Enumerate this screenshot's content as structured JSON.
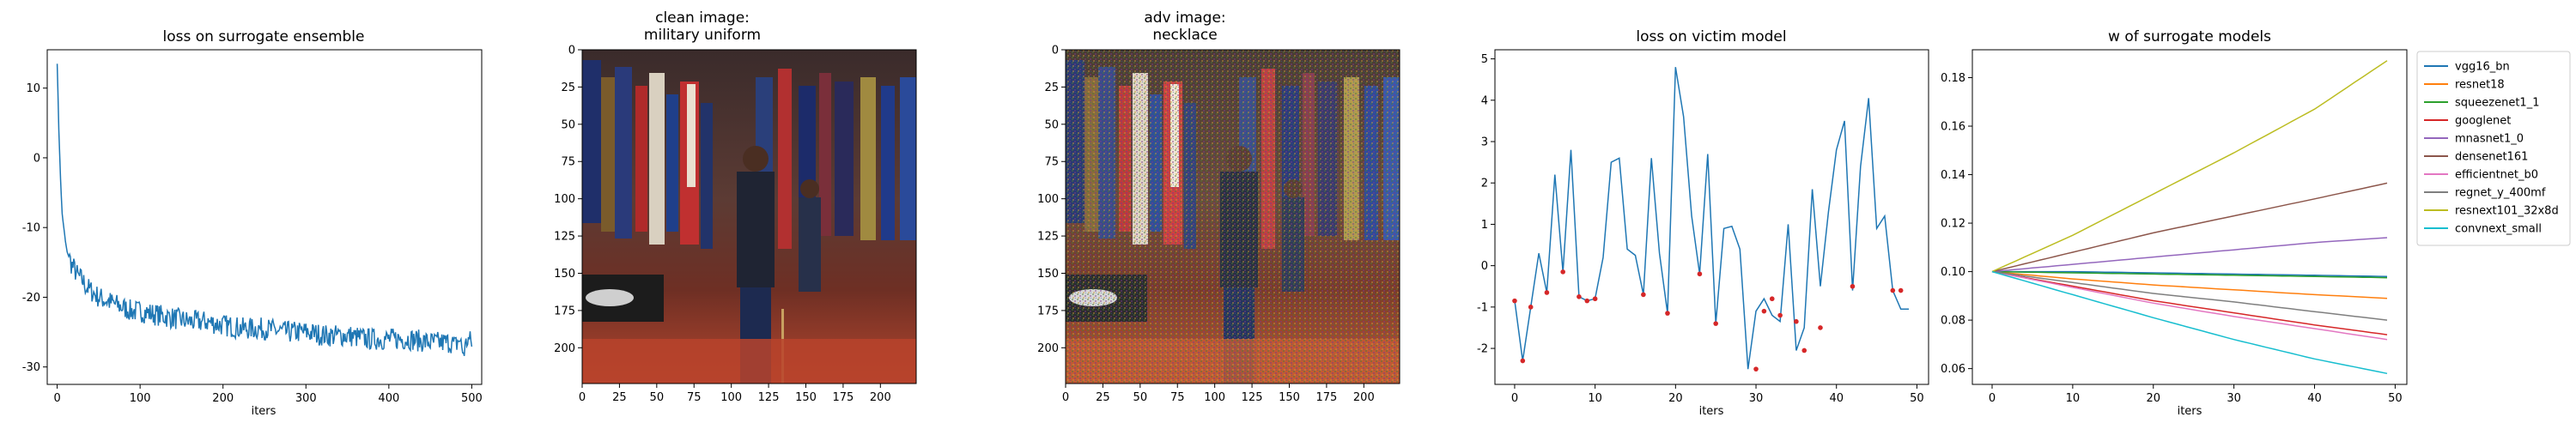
{
  "chart_data": [
    {
      "type": "line",
      "title": "loss on surrogate ensemble",
      "xlabel": "iters",
      "ylabel": "",
      "xlim": [
        -12,
        512
      ],
      "ylim": [
        -32.5,
        15.5
      ],
      "xticks": [
        0,
        100,
        200,
        300,
        400,
        500
      ],
      "yticks": [
        10,
        0,
        -10,
        -20,
        -30
      ],
      "color": "#1f77b4",
      "grid": false,
      "series": [
        {
          "x": [
            0,
            2,
            4,
            6,
            8,
            10,
            12,
            15,
            18,
            21,
            25,
            30,
            35,
            40,
            45,
            50,
            60,
            70,
            80,
            90,
            100,
            120,
            140,
            160,
            180,
            200,
            225,
            250,
            275,
            300,
            325,
            350,
            375,
            400,
            425,
            450,
            475,
            480,
            485,
            490,
            495,
            500
          ],
          "y": [
            13.5,
            4.0,
            -3.0,
            -8.0,
            -10.0,
            -12.0,
            -13.5,
            -14.5,
            -15.5,
            -16.0,
            -17.0,
            -17.5,
            -18.5,
            -19.0,
            -19.5,
            -20.0,
            -20.5,
            -21.0,
            -21.5,
            -22.0,
            -22.0,
            -22.5,
            -23.0,
            -23.5,
            -23.5,
            -24.0,
            -24.5,
            -24.5,
            -25.0,
            -25.0,
            -25.5,
            -25.5,
            -26.0,
            -26.0,
            -26.0,
            -26.5,
            -26.5,
            -27.0,
            -26.0,
            -28.0,
            -26.0,
            -26.5
          ]
        }
      ]
    },
    {
      "type": "image",
      "title_lines": [
        "clean image:",
        "military uniform"
      ],
      "xlim": [
        0,
        224
      ],
      "ylim": [
        224,
        0
      ],
      "xticks": [
        0,
        25,
        50,
        75,
        100,
        125,
        150,
        175,
        200
      ],
      "yticks": [
        0,
        25,
        50,
        75,
        100,
        125,
        150,
        175,
        200
      ]
    },
    {
      "type": "image",
      "title_lines": [
        "adv image:",
        "necklace"
      ],
      "xlim": [
        0,
        224
      ],
      "ylim": [
        224,
        0
      ],
      "xticks": [
        0,
        25,
        50,
        75,
        100,
        125,
        150,
        175,
        200
      ],
      "yticks": [
        0,
        25,
        50,
        75,
        100,
        125,
        150,
        175,
        200
      ]
    },
    {
      "type": "line",
      "title": "loss on victim model",
      "xlabel": "iters",
      "ylabel": "",
      "xlim": [
        -2.45,
        51.45
      ],
      "ylim": [
        -2.87,
        5.22
      ],
      "xticks": [
        0,
        10,
        20,
        30,
        40,
        50
      ],
      "yticks": [
        5,
        4,
        3,
        2,
        1,
        0,
        -1,
        -2
      ],
      "color": "#1f77b4",
      "marker_color": "#d62728",
      "grid": false,
      "series": [
        {
          "x": [
            0,
            1,
            2,
            3,
            4,
            5,
            6,
            7,
            8,
            9,
            10,
            11,
            12,
            13,
            14,
            15,
            16,
            17,
            18,
            19,
            20,
            21,
            22,
            23,
            24,
            25,
            26,
            27,
            28,
            29,
            30,
            31,
            32,
            33,
            34,
            35,
            36,
            37,
            38,
            39,
            40,
            41,
            42,
            43,
            44,
            45,
            46,
            47,
            48,
            49
          ],
          "y": [
            -0.85,
            -2.3,
            -1.0,
            0.3,
            -0.65,
            2.2,
            -0.15,
            2.8,
            -0.75,
            -0.85,
            -0.8,
            0.2,
            2.5,
            2.6,
            0.4,
            0.25,
            -0.7,
            2.6,
            0.3,
            -1.15,
            4.8,
            3.6,
            1.2,
            -0.2,
            2.7,
            -1.4,
            0.9,
            0.95,
            0.4,
            -2.5,
            -1.1,
            -0.8,
            -1.2,
            -1.35,
            1.0,
            -2.05,
            -1.5,
            1.85,
            -0.5,
            1.3,
            2.8,
            3.5,
            -0.6,
            2.4,
            4.05,
            0.9,
            1.2,
            -0.6,
            -1.05,
            -1.05
          ],
          "markers_x": [
            0,
            1,
            2,
            4,
            6,
            8,
            9,
            10,
            16,
            19,
            23,
            25,
            30,
            31,
            32,
            33,
            35,
            36,
            38,
            42,
            47,
            48
          ],
          "markers_y": [
            -0.85,
            -2.3,
            -1.0,
            -0.65,
            -0.15,
            -0.75,
            -0.85,
            -0.8,
            -0.7,
            -1.15,
            -0.2,
            -1.4,
            -2.5,
            -1.1,
            -0.8,
            -1.2,
            -1.35,
            -2.05,
            -1.5,
            -0.5,
            -0.6,
            -0.6
          ]
        }
      ]
    },
    {
      "type": "line",
      "title": "w of surrogate models",
      "xlabel": "iters",
      "ylabel": "",
      "xlim": [
        -2.45,
        51.45
      ],
      "ylim": [
        0.0535,
        0.1915
      ],
      "xticks": [
        0,
        10,
        20,
        30,
        40,
        50
      ],
      "yticks": [
        0.18,
        0.16,
        0.14,
        0.12,
        0.1,
        0.08,
        0.06
      ],
      "grid": false,
      "legend": "outside-right",
      "x": [
        0,
        10,
        20,
        30,
        40,
        49
      ],
      "series": [
        {
          "name": "vgg16_bn",
          "color": "#1f77b4",
          "values": [
            0.1,
            0.1,
            0.0995,
            0.099,
            0.0985,
            0.098
          ]
        },
        {
          "name": "resnet18",
          "color": "#ff7f0e",
          "values": [
            0.1,
            0.097,
            0.0945,
            0.0925,
            0.0905,
            0.089
          ]
        },
        {
          "name": "squeezenet1_1",
          "color": "#2ca02c",
          "values": [
            0.1,
            0.0995,
            0.099,
            0.0985,
            0.098,
            0.0975
          ]
        },
        {
          "name": "googlenet",
          "color": "#d62728",
          "values": [
            0.1,
            0.094,
            0.088,
            0.083,
            0.078,
            0.074
          ]
        },
        {
          "name": "mnasnet1_0",
          "color": "#9467bd",
          "values": [
            0.1,
            0.103,
            0.106,
            0.109,
            0.112,
            0.114
          ]
        },
        {
          "name": "densenet161",
          "color": "#8c564b",
          "values": [
            0.1,
            0.108,
            0.116,
            0.123,
            0.13,
            0.1365
          ]
        },
        {
          "name": "efficientnet_b0",
          "color": "#e377c2",
          "values": [
            0.1,
            0.0935,
            0.087,
            0.0815,
            0.0765,
            0.072
          ]
        },
        {
          "name": "regnet_y_400mf",
          "color": "#7f7f7f",
          "values": [
            0.1,
            0.0955,
            0.091,
            0.0875,
            0.0835,
            0.08
          ]
        },
        {
          "name": "resnext101_32x8d",
          "color": "#bcbd22",
          "values": [
            0.1,
            0.115,
            0.132,
            0.149,
            0.167,
            0.187
          ]
        },
        {
          "name": "convnext_small",
          "color": "#17becf",
          "values": [
            0.1,
            0.0905,
            0.081,
            0.072,
            0.064,
            0.058
          ]
        }
      ]
    }
  ]
}
